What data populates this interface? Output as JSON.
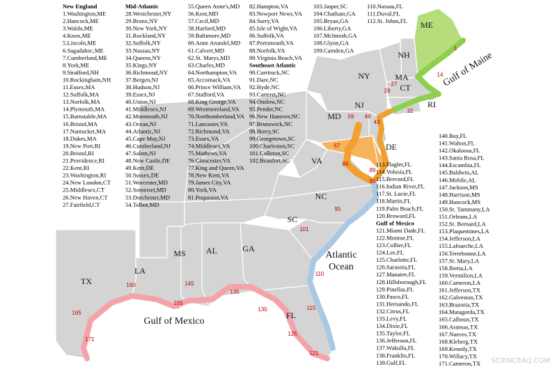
{
  "legend": {
    "columns": [
      [
        {
          "heading": "New England"
        },
        "1.Washington,ME",
        "2.Hancock,ME",
        "3.Waldo,ME",
        "4.Knox,ME",
        "5.Lincoln,ME",
        "6.Sagadahoc,ME",
        "7.Cumberland,ME",
        "8.York,ME",
        "9.Strafford,NH",
        "10.Rockingham,NH",
        "11.Essex,MA",
        "12.Suffolk,MA",
        "13.Norfolk,MA",
        "14.Plymouth,MA",
        "15.Barnstable,MA",
        "16.Bristol,MA",
        "17.Nantucket,MA",
        "18.Dukes,MA",
        "19.New Port,RI",
        "20.Bristol,RI",
        "21.Providence,RI",
        "22.Kent,RI",
        "23.Washington,RI",
        "24.New London,CT",
        "25.Middlesex,CT",
        "26.New Haven,CT",
        "27.Fairfield,CT"
      ],
      [
        {
          "heading": "Mid-Atlantic"
        },
        "28.Westchester,NY",
        "29.Bronx,NY",
        "30.New York,NY",
        "31.Rockland,NY",
        "32.Suffolk,NY",
        "33.Nassau,NY",
        "34.Queens,NY",
        "35.Kings,NY",
        "36.Richmond,NY",
        "37.Bergen,NJ",
        "38.Hudson,NJ",
        "39.Essex,NJ",
        "40.Union,NJ",
        "41.Middlesex,NJ",
        "42.Monmouth,NJ",
        "43.Ocean,NJ",
        "44.Atlantic,NJ",
        "45.Cape May,NJ",
        "46.Cumberland,NJ",
        "47.Salem,NJ",
        "48.New Castle,DE",
        "49.Kent,DE",
        "50.Sussex,DE",
        "51.Worcester,MD",
        "52.Somerset,MD",
        "53.Dorchester,MD",
        "54.Talbot,MD"
      ],
      [
        "55.Queen Anne's,MD",
        "56.Kent,MD",
        "57.Cecil,MD",
        "58.Harford,MD",
        "59.Baltimore,MD",
        "60.Anne Arundel,MD",
        "61.Calvert,MD",
        "62.St. Marys,MD",
        "63.Charles,MD",
        "64.Northampton,VA",
        "65.Accomack,VA",
        "66.Prince William,VA",
        "67.Stafford,VA",
        "68.King George,VA",
        "69.Westmoreland,VA",
        "70.Northumberland,VA",
        "71.Lancaster,VA",
        "72.Richmond,VA",
        "73.Essex,VA",
        "74.Middlesex,VA",
        "75.Mathews,VA",
        "76.Gloucester,VA",
        "77.King and Queen,VA",
        "78.New Kent,VA",
        "79.James City,VA",
        "80.York,VA",
        "81.Poquoson,VA"
      ],
      [
        "82.Hampton,VA",
        "83.Newport News,VA",
        "84.Surry,VA",
        "85.Isle of Wight,VA",
        "86.Suffolk,VA",
        "87.Portsmouth,VA",
        "88.Norfolk,VA",
        "89.Virginia Beach,VA",
        {
          "heading": "Southeast Atlantic"
        },
        "90.Currituck,NC",
        "91.Dare,NC",
        "92.Hyde,NC",
        "93.Carteret,NC",
        "94.Onslow,NC",
        "95.Pender,NC",
        "96.New Hanover,NC",
        "97.Brunswick,NC",
        "98.Horry,SC",
        "99.Georgetown,SC",
        "100.Charleston,SC",
        "101.Colleton,SC",
        "102.Beaufort,SC"
      ],
      [
        "103.Jasper,SC",
        "104.Chatham,GA",
        "105.Bryan,GA",
        "106.Liberty,GA",
        "107.McIntosh,GA",
        "108.Glynn,GA",
        "109.Camden,GA"
      ],
      [
        "110.Nassau,FL",
        "111.Duval,FL",
        "112.St. Johns,FL"
      ],
      [
        "113.Flagler,FL",
        "114.Volusia,FL",
        "115.Brevard,FL",
        "116.Indian River,FL",
        "117.St. Lucie,FL",
        "118.Martin,FL",
        "119.Palm Beach,FL",
        "120.Broward,FL",
        {
          "heading": "Gulf of Mexico"
        },
        "121.Miami Dade,FL",
        "122.Monroe,FL",
        "123.Collier,FL",
        "124.Lee,FL",
        "125.Charlotte,FL",
        "126.Sarasota,FL",
        "127.Manatee,FL",
        "128.Hillsborough,FL",
        "129.Pinellas,FL",
        "130.Pasco,FL",
        "131.Hernando,FL",
        "132.Citrus,FL",
        "133.Levy,FL",
        "134.Dixie,FL",
        "135.Taylor,FL",
        "136.Jefferson,FL",
        "137.Wakulla,FL",
        "138.Franklin,FL",
        "139.Gulf,FL"
      ],
      [
        "140.Bay,FL",
        "141.Walton,FL",
        "142.Okaloosa,FL",
        "143.Santa Rosa,FL",
        "144.Escambia,FL",
        "145.Baldwin,AL",
        "146.Mobile,AL",
        "147.Jackson,MS",
        "148.Harrison,MS",
        "149.Hancock,MS",
        "150.St. Tammany,LA",
        "151.Orleans,LA",
        "152.St. Bernard,LA",
        "153.Plaquemines,LA",
        "154.Jefferson,LA",
        "155.Lafourche,LA",
        "156.Terrebonne,LA",
        "157.St. Mary,LA",
        "158.Iberia,LA",
        "159.Vermilion,LA",
        "160.Cameron,LA",
        "161.Jefferson,TX",
        "162.Galveston,TX",
        "163.Brazoria,TX",
        "164.Matagorda,TX",
        "165.Calhoun,TX",
        "166.Aransas,TX",
        "167.Nueces,TX",
        "168.Kleberg,TX",
        "169.Kenedy,TX",
        "170.Willacy,TX",
        "171.Cameron,TX"
      ]
    ]
  },
  "map": {
    "state_labels": [
      "ME",
      "NH",
      "MA",
      "CT",
      "RI",
      "NY",
      "NJ",
      "MD",
      "DE",
      "VA",
      "NC",
      "SC",
      "GA",
      "FL",
      "AL",
      "MS",
      "LA",
      "TX"
    ],
    "water_labels": [
      "Gulf of Maine",
      "Atlantic",
      "Ocean",
      "Gulf of Mexico"
    ],
    "site_numbers": [
      1,
      14,
      27,
      28,
      32,
      43,
      48,
      59,
      67,
      84,
      89,
      90,
      95,
      101,
      110,
      115,
      121,
      125,
      130,
      135,
      145,
      155,
      160,
      165,
      171
    ]
  },
  "watermark": "SCIENCEAQ.COM"
}
